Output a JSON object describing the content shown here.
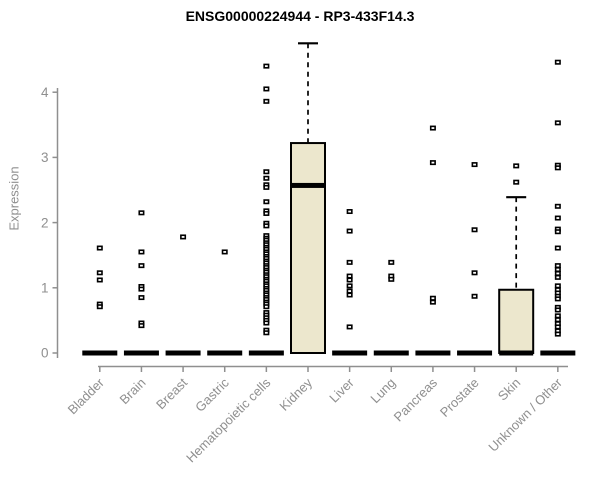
{
  "title": "ENSG00000224944 - RP3-433F14.3",
  "chart_data": {
    "type": "boxplot",
    "title": "ENSG00000224944 - RP3-433F14.3",
    "xlabel": "",
    "ylabel": "Expression",
    "ylim": [
      0,
      4.8
    ],
    "yticks": [
      "0",
      "1",
      "2",
      "3",
      "4"
    ],
    "grid": false,
    "legend": "none",
    "colors": {
      "box_fill": "#ece7cd",
      "box_border": "#000000",
      "median": "#000000",
      "outlier": "#000000",
      "axis": "#8f8f8f",
      "tick_label": "#8f8f8f",
      "title": "#000000",
      "background": "#ffffff"
    },
    "categories": [
      "Bladder",
      "Brain",
      "Breast",
      "Gastric",
      "Hematopoietic cells",
      "Kidney",
      "Liver",
      "Lung",
      "Pancreas",
      "Prostate",
      "Skin",
      "Unknown / Other"
    ],
    "boxes": [
      {
        "category": "Bladder",
        "q1": 0,
        "median": 0,
        "q3": 0,
        "whisker_high": 0,
        "outliers": [
          1.61,
          1.23,
          1.12,
          0.75,
          0.71
        ]
      },
      {
        "category": "Brain",
        "q1": 0,
        "median": 0,
        "q3": 0,
        "whisker_high": 0,
        "outliers": [
          2.15,
          1.55,
          1.34,
          1.02,
          0.98,
          0.85,
          0.46,
          0.42
        ]
      },
      {
        "category": "Breast",
        "q1": 0,
        "median": 0,
        "q3": 0,
        "whisker_high": 0,
        "outliers": [
          1.78
        ]
      },
      {
        "category": "Gastric",
        "q1": 0,
        "median": 0,
        "q3": 0,
        "whisker_high": 0,
        "outliers": [
          1.55
        ]
      },
      {
        "category": "Hematopoietic cells",
        "q1": 0,
        "median": 0,
        "q3": 0,
        "whisker_high": 0,
        "outliers": [
          4.4,
          4.05,
          3.86,
          2.78,
          2.68,
          2.58,
          2.54,
          2.32,
          2.18,
          2.14,
          1.99,
          1.95,
          1.8,
          1.76,
          1.73,
          1.69,
          1.66,
          1.62,
          1.59,
          1.55,
          1.52,
          1.48,
          1.45,
          1.41,
          1.38,
          1.34,
          1.31,
          1.27,
          1.24,
          1.2,
          1.17,
          1.13,
          1.1,
          1.06,
          1.03,
          0.99,
          0.96,
          0.92,
          0.89,
          0.85,
          0.82,
          0.78,
          0.75,
          0.71,
          0.62,
          0.58,
          0.54,
          0.5,
          0.46,
          0.35,
          0.31
        ]
      },
      {
        "category": "Kidney",
        "q1": 0,
        "median": 2.57,
        "q3": 3.22,
        "whisker_high": 4.75,
        "outliers": []
      },
      {
        "category": "Liver",
        "q1": 0,
        "median": 0,
        "q3": 0,
        "whisker_high": 0,
        "outliers": [
          2.17,
          1.87,
          1.39,
          1.18,
          1.12,
          1.03,
          0.95,
          0.89,
          0.4
        ]
      },
      {
        "category": "Lung",
        "q1": 0,
        "median": 0,
        "q3": 0,
        "whisker_high": 0,
        "outliers": [
          1.39,
          1.18,
          1.13
        ]
      },
      {
        "category": "Pancreas",
        "q1": 0,
        "median": 0,
        "q3": 0,
        "whisker_high": 0,
        "outliers": [
          3.45,
          2.92,
          0.84,
          0.78
        ]
      },
      {
        "category": "Prostate",
        "q1": 0,
        "median": 0,
        "q3": 0,
        "whisker_high": 0,
        "outliers": [
          2.89,
          1.89,
          1.23,
          0.87
        ]
      },
      {
        "category": "Skin",
        "q1": 0,
        "median": 0,
        "q3": 0.97,
        "whisker_high": 2.39,
        "outliers": [
          2.87,
          2.62
        ]
      },
      {
        "category": "Unknown / Other",
        "q1": 0,
        "median": 0,
        "q3": 0,
        "whisker_high": 0,
        "outliers": [
          4.46,
          3.53,
          2.88,
          2.84,
          2.25,
          2.07,
          1.9,
          1.86,
          1.61,
          1.34,
          1.28,
          1.22,
          1.16,
          1.03,
          0.97,
          0.92,
          0.87,
          0.83,
          0.7,
          0.66,
          0.57,
          0.51,
          0.45,
          0.4,
          0.34,
          0.29
        ]
      }
    ]
  }
}
